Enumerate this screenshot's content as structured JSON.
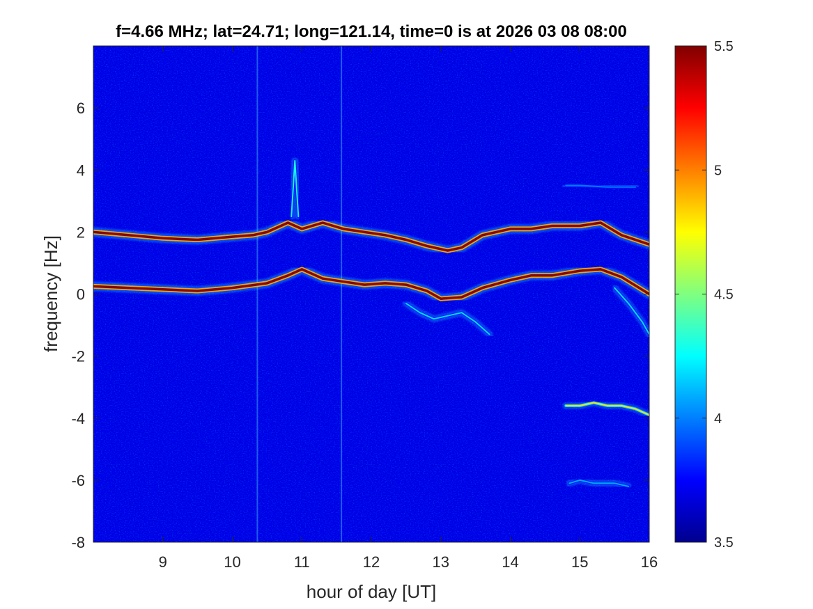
{
  "chart_data": {
    "type": "heatmap",
    "title": "f=4.66 MHz;  lat=24.71; long=121.14, time=0 is at 2026 03 08 08:00",
    "xlabel": "hour of day [UT]",
    "ylabel": "frequency [Hz]",
    "xlim": [
      8,
      16
    ],
    "ylim": [
      -8,
      8
    ],
    "xticks": [
      9,
      10,
      11,
      12,
      13,
      14,
      15,
      16
    ],
    "xtick_labels": [
      "9",
      "10",
      "11",
      "12",
      "13",
      "14",
      "15",
      "16"
    ],
    "yticks": [
      -8,
      -6,
      -4,
      -2,
      0,
      2,
      4,
      6
    ],
    "ytick_labels": [
      "-8",
      "-6",
      "-4",
      "-2",
      "0",
      "2",
      "4",
      "6"
    ],
    "colormap": "jet",
    "clim": [
      3.5,
      5.5
    ],
    "colorbar_ticks": [
      3.5,
      4,
      4.5,
      5,
      5.5
    ],
    "colorbar_tick_labels": [
      "3.5",
      "4",
      "4.5",
      "5",
      "5.5"
    ],
    "background_value": 3.7,
    "features": [
      {
        "name": "upper trace",
        "x": [
          8.0,
          8.5,
          9.0,
          9.5,
          10.0,
          10.3,
          10.5,
          10.8,
          11.0,
          11.3,
          11.6,
          11.9,
          12.2,
          12.5,
          12.8,
          13.1,
          13.3,
          13.6,
          14.0,
          14.3,
          14.6,
          15.0,
          15.3,
          15.6,
          16.0
        ],
        "y": [
          2.0,
          1.9,
          1.8,
          1.75,
          1.85,
          1.9,
          2.0,
          2.3,
          2.1,
          2.3,
          2.1,
          2.0,
          1.9,
          1.75,
          1.55,
          1.4,
          1.5,
          1.9,
          2.1,
          2.1,
          2.2,
          2.2,
          2.3,
          1.9,
          1.6
        ],
        "peak_value": 5.5
      },
      {
        "name": "lower trace",
        "x": [
          8.0,
          8.5,
          9.0,
          9.5,
          10.0,
          10.5,
          10.8,
          11.0,
          11.3,
          11.6,
          11.9,
          12.2,
          12.5,
          12.8,
          13.0,
          13.3,
          13.6,
          14.0,
          14.3,
          14.6,
          15.0,
          15.3,
          15.6,
          16.0
        ],
        "y": [
          0.25,
          0.2,
          0.15,
          0.1,
          0.2,
          0.35,
          0.6,
          0.8,
          0.5,
          0.4,
          0.3,
          0.35,
          0.3,
          0.1,
          -0.15,
          -0.1,
          0.2,
          0.45,
          0.6,
          0.6,
          0.75,
          0.8,
          0.55,
          0.0
        ],
        "peak_value": 5.5
      },
      {
        "name": "diffuse trace",
        "x": [
          12.5,
          12.7,
          12.9,
          13.1,
          13.3,
          13.5,
          13.7
        ],
        "y": [
          -0.3,
          -0.6,
          -0.8,
          -0.7,
          -0.6,
          -0.9,
          -1.3
        ],
        "peak_value": 4.2
      },
      {
        "name": "spread branch",
        "x": [
          15.5,
          15.7,
          15.9,
          16.0
        ],
        "y": [
          0.2,
          -0.3,
          -0.9,
          -1.3
        ],
        "peak_value": 4.2
      },
      {
        "name": "negative band -3.7",
        "x": [
          14.8,
          15.0,
          15.2,
          15.4,
          15.6,
          15.8,
          16.0
        ],
        "y": [
          -3.6,
          -3.6,
          -3.5,
          -3.6,
          -3.6,
          -3.7,
          -3.9
        ],
        "peak_value": 4.8
      },
      {
        "name": "negative band -6.1",
        "x": [
          14.85,
          15.0,
          15.2,
          15.5,
          15.7
        ],
        "y": [
          -6.1,
          -6.0,
          -6.1,
          -6.1,
          -6.2
        ],
        "peak_value": 4.1
      },
      {
        "name": "faint band 3.5",
        "x": [
          14.8,
          15.0,
          15.4,
          15.8
        ],
        "y": [
          3.5,
          3.5,
          3.45,
          3.45
        ],
        "peak_value": 4.0
      },
      {
        "name": "spike near 10.9",
        "x": [
          10.85,
          10.9,
          10.95
        ],
        "y": [
          2.5,
          4.3,
          2.5
        ],
        "peak_value": 4.3
      }
    ],
    "vertical_streaks": [
      10.36,
      11.57
    ],
    "grid": false,
    "legend": "none"
  }
}
